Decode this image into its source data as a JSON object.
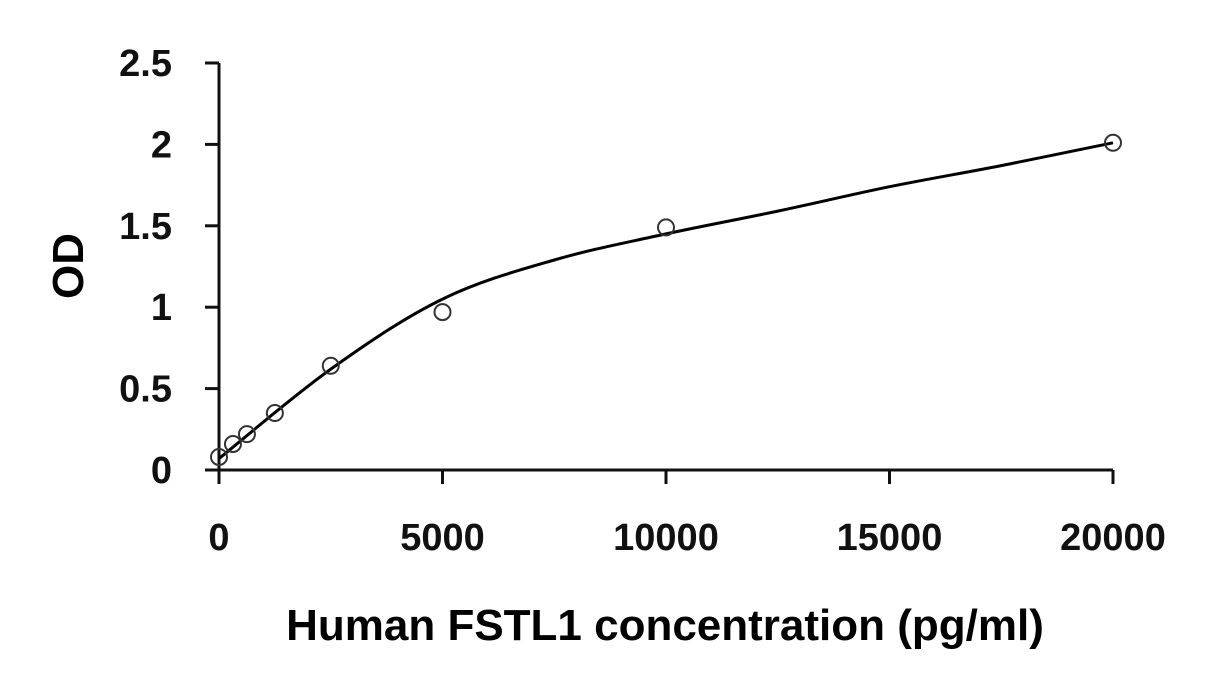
{
  "chart_data": {
    "type": "scatter",
    "title": "",
    "xlabel": "Human FSTL1 concentration (pg/ml)",
    "ylabel": "OD",
    "xlim": [
      0,
      20000
    ],
    "ylim": [
      0,
      2.5
    ],
    "x_ticks": [
      "0",
      "5000",
      "10000",
      "15000",
      "20000"
    ],
    "y_ticks": [
      "0",
      "0.5",
      "1",
      "1.5",
      "2",
      "2.5"
    ],
    "grid": false,
    "legend": "none",
    "series": [
      {
        "marker": "open-circle",
        "x": [
          0,
          312.5,
          625,
          1250,
          2500,
          5000,
          10000,
          20000
        ],
        "y": [
          0.08,
          0.16,
          0.22,
          0.35,
          0.64,
          0.97,
          1.49,
          2.01
        ]
      }
    ],
    "fit_curve": {
      "style": "smooth",
      "x": [
        0,
        2500,
        5000,
        7500,
        10000,
        12500,
        15000,
        17500,
        20000
      ],
      "y": [
        0.07,
        0.62,
        1.05,
        1.29,
        1.45,
        1.59,
        1.74,
        1.87,
        2.01
      ]
    },
    "colors": {
      "axis": "#111111",
      "marker": "#333333",
      "curve": "#000000"
    }
  }
}
